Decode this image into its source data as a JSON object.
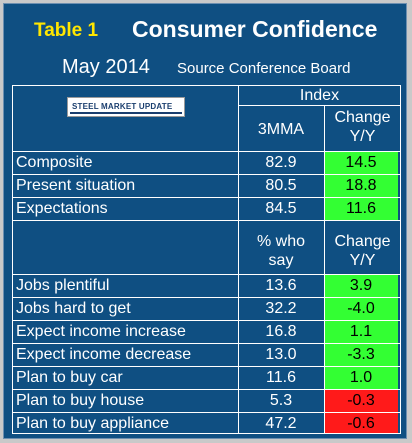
{
  "header": {
    "table_label": "Table 1",
    "title": "Consumer Confidence",
    "date": "May 2014",
    "source": "Source Conference Board"
  },
  "logo": {
    "text": "STEEL MARKET UPDATE"
  },
  "columns": {
    "index": "Index",
    "mma": "3MMA",
    "change_line1": "Change",
    "change_line2": "Y/Y",
    "pct_line1": "% who",
    "pct_line2": "say"
  },
  "rows_index": [
    {
      "label": "Composite",
      "value": "82.9",
      "change": "14.5"
    },
    {
      "label": "Present situation",
      "value": "80.5",
      "change": "18.8"
    },
    {
      "label": "Expectations",
      "value": "84.5",
      "change": "11.6"
    }
  ],
  "rows_pct": [
    {
      "label": "Jobs plentiful",
      "value": "13.6",
      "change": "3.9"
    },
    {
      "label": "Jobs hard to get",
      "value": "32.2",
      "change": "-4.0"
    },
    {
      "label": "Expect income increase",
      "value": "16.8",
      "change": "1.1"
    },
    {
      "label": "Expect income decrease",
      "value": "13.0",
      "change": "-3.3"
    },
    {
      "label": "Plan to buy car",
      "value": "11.6",
      "change": "1.0"
    },
    {
      "label": "Plan to buy house",
      "value": "5.3",
      "change": "-0.3"
    },
    {
      "label": "Plan to buy appliance",
      "value": "47.2",
      "change": "-0.6"
    }
  ],
  "colors": {
    "background": "#0f4f82",
    "title_accent": "#ffe600",
    "positive": "#33ff33",
    "negative": "#ff1a1a"
  }
}
